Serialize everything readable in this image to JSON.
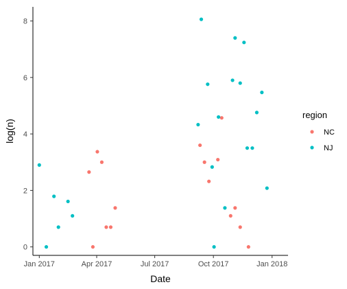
{
  "chart_data": {
    "type": "scatter",
    "xlabel": "Date",
    "ylabel": "log(n)",
    "x_axis_type": "date",
    "xlim": [
      "2016-12-22",
      "2018-01-26"
    ],
    "ylim": [
      -0.3,
      8.5
    ],
    "x_ticks": [
      {
        "date": "2017-01-01",
        "label": "Jan 2017"
      },
      {
        "date": "2017-04-01",
        "label": "Apr 2017"
      },
      {
        "date": "2017-07-01",
        "label": "Jul 2017"
      },
      {
        "date": "2017-10-01",
        "label": "Oct 2017"
      },
      {
        "date": "2018-01-01",
        "label": "Jan 2018"
      }
    ],
    "y_ticks": [
      0,
      2,
      4,
      6,
      8
    ],
    "grid": false,
    "legend": {
      "title": "region",
      "placement": "right"
    },
    "series": [
      {
        "name": "NC",
        "color": "#F8766D",
        "points": [
          {
            "x": "2017-03-20",
            "y": 2.65
          },
          {
            "x": "2017-03-26",
            "y": 0.0
          },
          {
            "x": "2017-04-02",
            "y": 3.37
          },
          {
            "x": "2017-04-09",
            "y": 3.0
          },
          {
            "x": "2017-04-16",
            "y": 0.7
          },
          {
            "x": "2017-04-23",
            "y": 0.7
          },
          {
            "x": "2017-04-30",
            "y": 1.38
          },
          {
            "x": "2017-09-10",
            "y": 3.6
          },
          {
            "x": "2017-09-17",
            "y": 3.0
          },
          {
            "x": "2017-09-24",
            "y": 2.32
          },
          {
            "x": "2017-10-08",
            "y": 3.09
          },
          {
            "x": "2017-10-14",
            "y": 4.57
          },
          {
            "x": "2017-10-28",
            "y": 1.1
          },
          {
            "x": "2017-11-04",
            "y": 1.38
          },
          {
            "x": "2017-11-12",
            "y": 0.7
          },
          {
            "x": "2017-11-25",
            "y": 0.0
          }
        ]
      },
      {
        "name": "NJ",
        "color": "#00BFC4",
        "points": [
          {
            "x": "2017-01-01",
            "y": 2.9
          },
          {
            "x": "2017-01-12",
            "y": 0.0
          },
          {
            "x": "2017-01-24",
            "y": 1.79
          },
          {
            "x": "2017-01-31",
            "y": 0.7
          },
          {
            "x": "2017-02-15",
            "y": 1.61
          },
          {
            "x": "2017-02-22",
            "y": 1.1
          },
          {
            "x": "2017-09-07",
            "y": 4.33
          },
          {
            "x": "2017-09-12",
            "y": 8.06
          },
          {
            "x": "2017-09-22",
            "y": 5.76
          },
          {
            "x": "2017-09-29",
            "y": 2.83
          },
          {
            "x": "2017-10-02",
            "y": 0.0
          },
          {
            "x": "2017-10-09",
            "y": 4.6
          },
          {
            "x": "2017-10-19",
            "y": 1.38
          },
          {
            "x": "2017-10-31",
            "y": 5.9
          },
          {
            "x": "2017-11-04",
            "y": 7.4
          },
          {
            "x": "2017-11-12",
            "y": 5.8
          },
          {
            "x": "2017-11-18",
            "y": 7.24
          },
          {
            "x": "2017-11-23",
            "y": 3.5
          },
          {
            "x": "2017-12-01",
            "y": 3.5
          },
          {
            "x": "2017-12-08",
            "y": 4.76
          },
          {
            "x": "2017-12-16",
            "y": 5.47
          },
          {
            "x": "2017-12-24",
            "y": 2.08
          }
        ]
      }
    ]
  }
}
